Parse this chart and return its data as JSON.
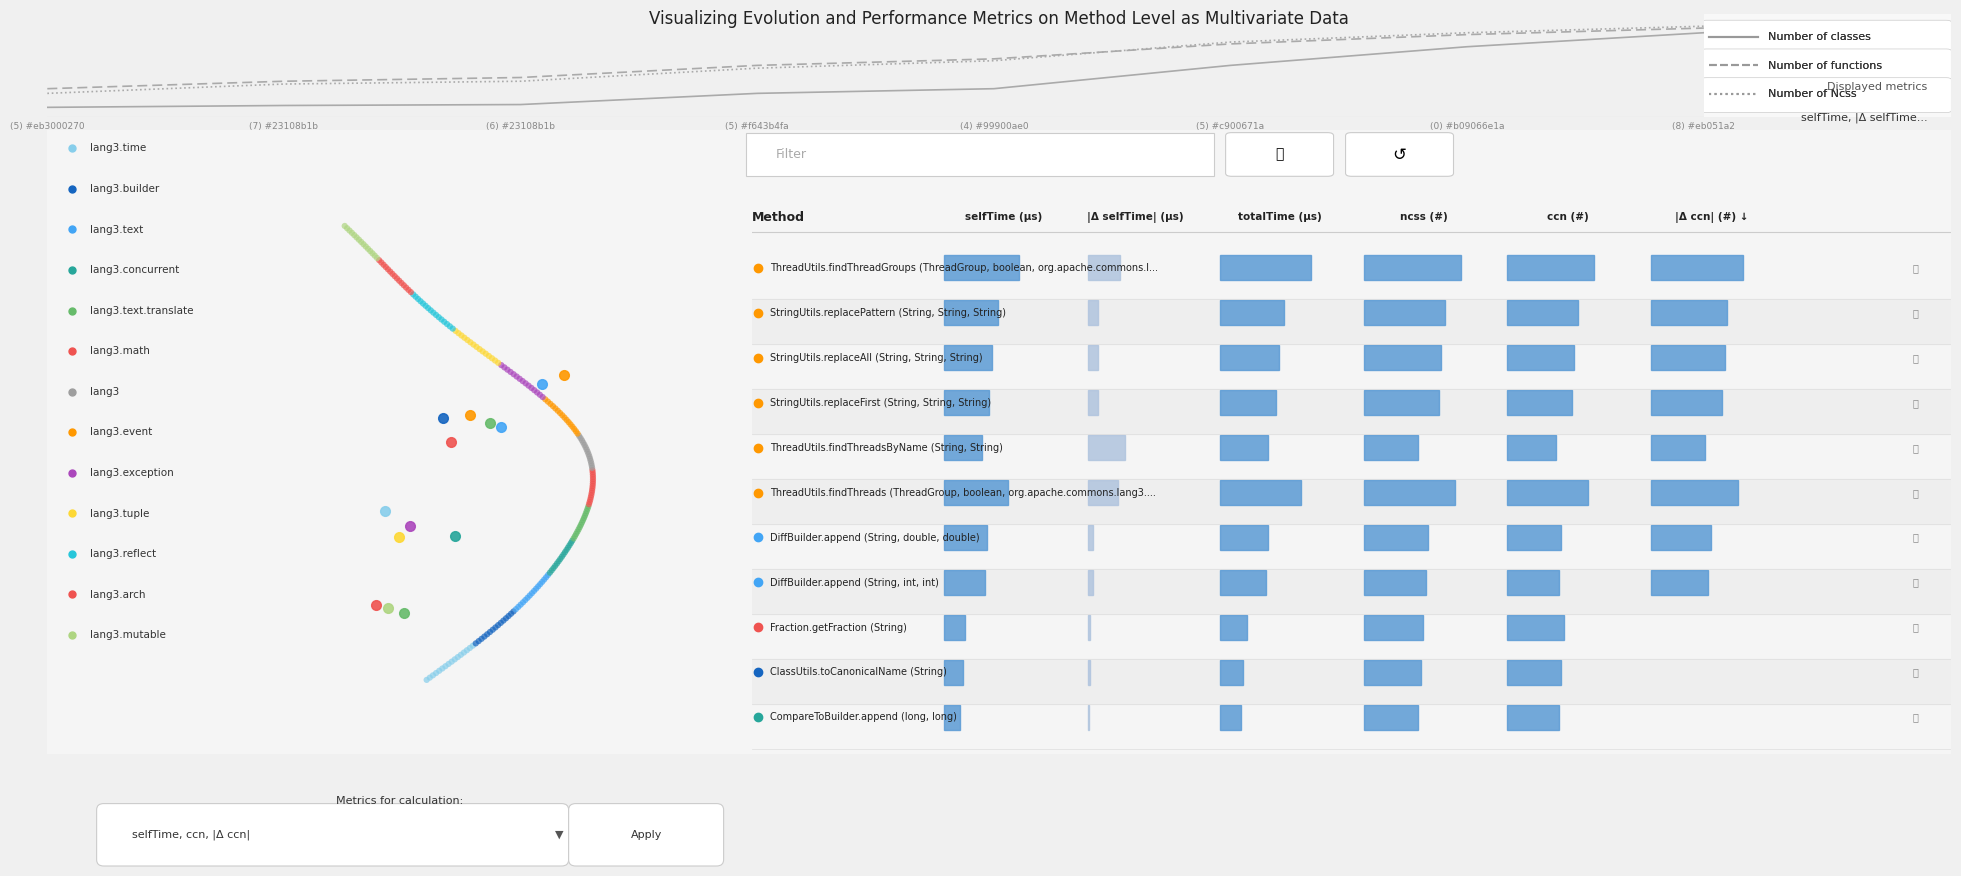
{
  "title": "Visualizing Evolution and Performance Metrics on Method Level as Multivariate Data",
  "bg_color": "#f5f5f5",
  "timeline_commits": [
    "(5) #eb3000270",
    "(7) #23108b1b",
    "(6) #23108b1b",
    "(5) #f643b4fa",
    "(4) #99900ae0",
    "(5) #c900671a",
    "(0) #b09066e1a",
    "(8) #eb051a2"
  ],
  "legend_items": [
    {
      "label": "lang3.time",
      "color": "#87ceeb"
    },
    {
      "label": "lang3.builder",
      "color": "#1565c0"
    },
    {
      "label": "lang3.text",
      "color": "#42a5f5"
    },
    {
      "label": "lang3.concurrent",
      "color": "#26a69a"
    },
    {
      "label": "lang3.text.translate",
      "color": "#66bb6a"
    },
    {
      "label": "lang3.math",
      "color": "#ef5350"
    },
    {
      "label": "lang3",
      "color": "#9e9e9e"
    },
    {
      "label": "lang3.event",
      "color": "#ff9800"
    },
    {
      "label": "lang3.exception",
      "color": "#ab47bc"
    },
    {
      "label": "lang3.tuple",
      "color": "#fdd835"
    },
    {
      "label": "lang3.reflect",
      "color": "#26c6da"
    },
    {
      "label": "lang3.arch",
      "color": "#ef5350"
    },
    {
      "label": "lang3.mutable",
      "color": "#aed581"
    }
  ],
  "line_legend": [
    {
      "label": "Number of classes",
      "style": "solid"
    },
    {
      "label": "Number of functions",
      "style": "dashed"
    },
    {
      "label": "Number of Ncss",
      "style": "dotted"
    }
  ],
  "filter_label": "Filter",
  "displayed_metrics_label": "Displayed metrics",
  "displayed_metrics_value": "selfTime, |Δ selfTime...",
  "method_column": "Method",
  "metrics_columns": [
    "selfTime (μs)",
    "|Δ selfTime| (μs)",
    "totalTime (μs)",
    "ncss (#)",
    "ccn (#)",
    "|Δ ccn| (#) ↓"
  ],
  "methods": [
    {
      "name": "ThreadUtils.findThreadGroups (ThreadGroup, boolean, org.apache.commons.lang3.ThreadUtils.T...",
      "color": "#ff9800",
      "bars": [
        0.7,
        0.3,
        0.85,
        0.9,
        0.8,
        0.85
      ]
    },
    {
      "name": "StringUtils.replacePattern (String, String, String)",
      "color": "#ff9800",
      "bars": [
        0.5,
        0.1,
        0.6,
        0.75,
        0.65,
        0.7
      ]
    },
    {
      "name": "StringUtils.replaceAll (String, String, String)",
      "color": "#ff9800",
      "bars": [
        0.45,
        0.1,
        0.55,
        0.72,
        0.62,
        0.68
      ]
    },
    {
      "name": "StringUtils.replaceFirst (String, String, String)",
      "color": "#ff9800",
      "bars": [
        0.42,
        0.1,
        0.52,
        0.7,
        0.6,
        0.65
      ]
    },
    {
      "name": "ThreadUtils.findThreadsByName (String, String)",
      "color": "#ff9800",
      "bars": [
        0.35,
        0.35,
        0.45,
        0.5,
        0.45,
        0.5
      ]
    },
    {
      "name": "ThreadUtils.findThreads (ThreadGroup, boolean, org.apache.commons.lang3.ThreadUtils.Thread...",
      "color": "#ff9800",
      "bars": [
        0.6,
        0.28,
        0.75,
        0.85,
        0.75,
        0.8
      ]
    },
    {
      "name": "DiffBuilder.append (String, double, double)",
      "color": "#42a5f5",
      "bars": [
        0.4,
        0.05,
        0.45,
        0.6,
        0.5,
        0.55
      ]
    },
    {
      "name": "DiffBuilder.append (String, int, int)",
      "color": "#42a5f5",
      "bars": [
        0.38,
        0.05,
        0.43,
        0.58,
        0.48,
        0.52
      ]
    },
    {
      "name": "Fraction.getFraction (String)",
      "color": "#ef5350",
      "bars": [
        0.2,
        0.02,
        0.25,
        0.55,
        0.52,
        0.0
      ]
    },
    {
      "name": "ClassUtils.toCanonicalName (String)",
      "color": "#1565c0",
      "bars": [
        0.18,
        0.02,
        0.22,
        0.53,
        0.5,
        0.0
      ]
    },
    {
      "name": "CompareToBuilder.append (long, long)",
      "color": "#26a69a",
      "bars": [
        0.15,
        0.01,
        0.2,
        0.5,
        0.48,
        0.0
      ]
    }
  ],
  "metrics_for_calculation": "selfTime, ccn, |Δ ccn|",
  "bar_color_main": "#5b9bd5",
  "bar_color_light": "#b0c4de",
  "scatter_color": "#5b9bd5"
}
